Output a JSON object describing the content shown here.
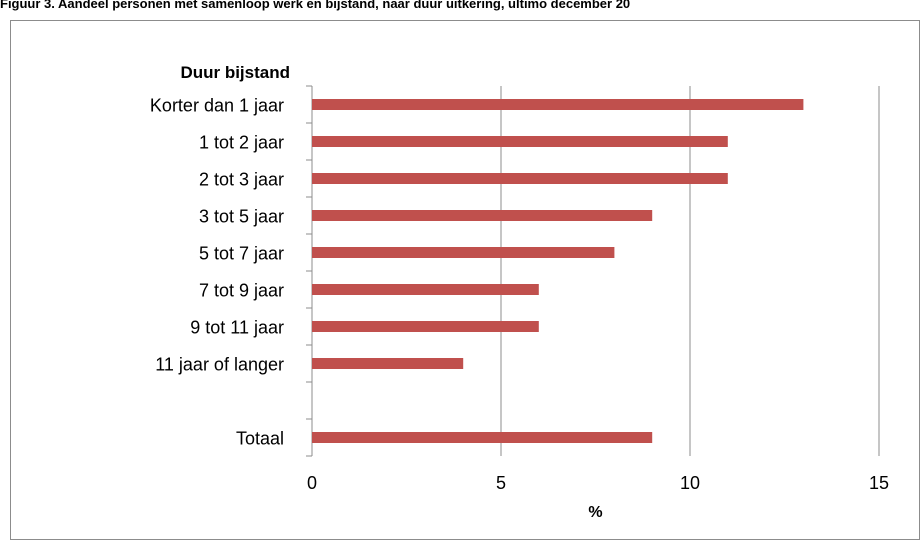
{
  "figure_title": "Figuur 3. Aandeel personen met samenloop werk en bijstand, naar duur uitkering, ultimo december 20",
  "chart_data": {
    "type": "bar",
    "orientation": "horizontal",
    "category_header": "Duur bijstand",
    "categories": [
      "Korter dan 1 jaar",
      "1 tot 2 jaar",
      "2 tot 3 jaar",
      "3 tot 5 jaar",
      "5 tot 7 jaar",
      "7 tot 9 jaar",
      "9 tot 11 jaar",
      "11 jaar of langer",
      "",
      "Totaal"
    ],
    "values": [
      13,
      11,
      11,
      9,
      8,
      6,
      6,
      4,
      null,
      9
    ],
    "xlabel": "%",
    "xlim": [
      0,
      15
    ],
    "xticks": [
      0,
      5,
      10,
      15
    ],
    "grid": true,
    "bar_color": "#c0504d"
  }
}
